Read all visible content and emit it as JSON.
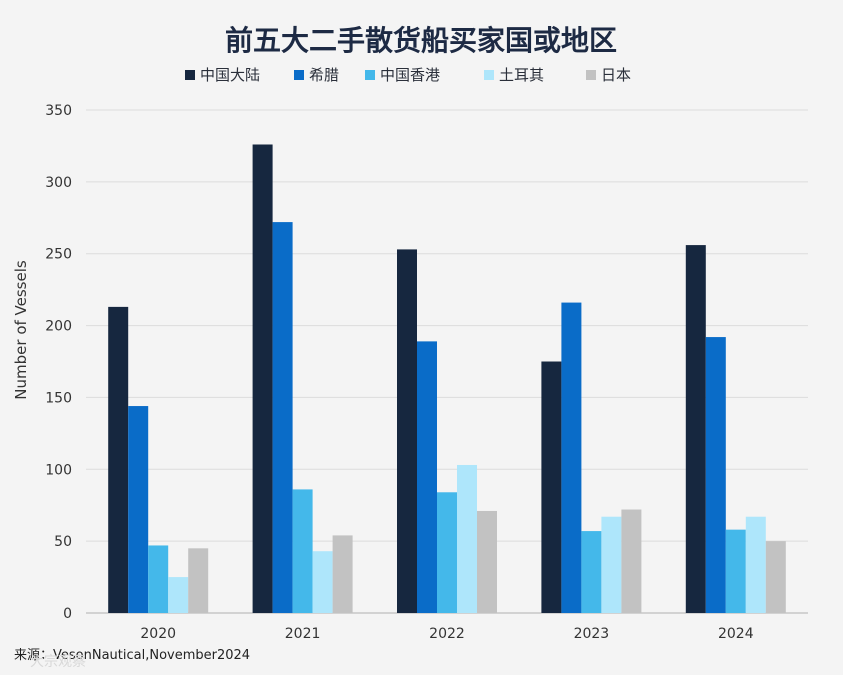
{
  "chart_data": {
    "type": "bar",
    "title": "前五大二手散货船买家国或地区",
    "ylabel": "Number of Vessels",
    "xlabel": "",
    "categories": [
      "2020",
      "2021",
      "2022",
      "2023",
      "2024"
    ],
    "ylim": [
      0,
      350
    ],
    "yticks": [
      0,
      50,
      100,
      150,
      200,
      250,
      300,
      350
    ],
    "grid": true,
    "legend_position": "top",
    "series": [
      {
        "name": "中国大陆",
        "color": "#16273f",
        "values": [
          213,
          326,
          253,
          175,
          256
        ]
      },
      {
        "name": "希腊",
        "color": "#0a6cc8",
        "values": [
          144,
          272,
          189,
          216,
          192
        ]
      },
      {
        "name": "中国香港",
        "color": "#44b8ea",
        "values": [
          47,
          86,
          84,
          57,
          58
        ]
      },
      {
        "name": "土耳其",
        "color": "#aee6fb",
        "values": [
          25,
          43,
          103,
          67,
          67
        ]
      },
      {
        "name": "日本",
        "color": "#c2c2c2",
        "values": [
          45,
          54,
          71,
          72,
          50
        ]
      }
    ],
    "source": "来源：VesonNautical,November2024"
  },
  "watermark": "大宗观察"
}
